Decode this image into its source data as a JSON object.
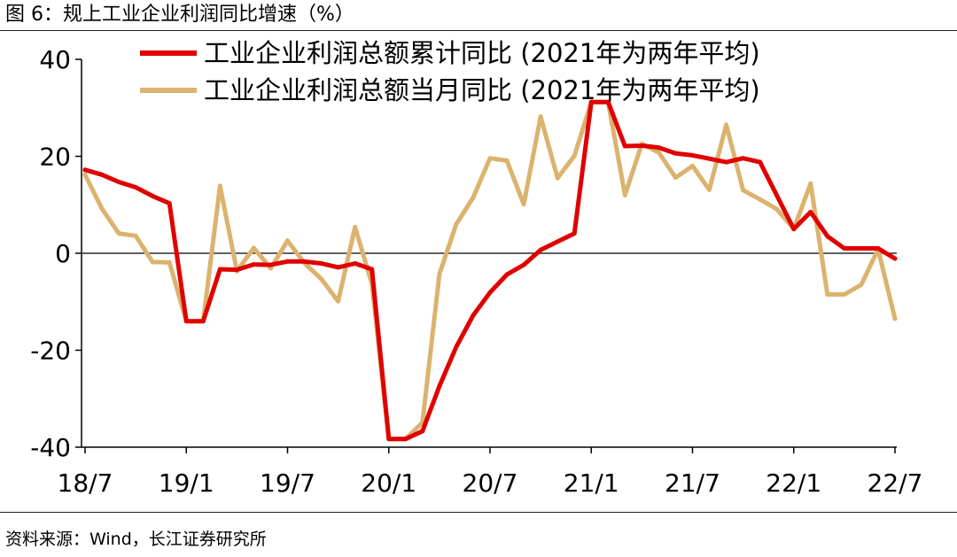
{
  "figure": {
    "caption": "图 6：规上工业企业利润同比增速（%）",
    "source": "资料来源：Wind，长江证券研究所"
  },
  "chart_data": {
    "type": "line",
    "title": "",
    "xlabel": "",
    "ylabel": "",
    "ylim": [
      -40,
      40
    ],
    "y_ticks": [
      "40",
      "20",
      "0",
      "-20",
      "-40"
    ],
    "y_tick_values": [
      40,
      20,
      0,
      -20,
      -40
    ],
    "x_ticks": [
      "18/7",
      "19/1",
      "19/7",
      "20/1",
      "20/7",
      "21/1",
      "21/7",
      "22/1",
      "22/7"
    ],
    "x_tick_index": [
      0,
      6,
      12,
      18,
      24,
      30,
      36,
      42,
      48
    ],
    "x": [
      "18/7",
      "18/8",
      "18/9",
      "18/10",
      "18/11",
      "18/12",
      "19/1",
      "19/2",
      "19/3",
      "19/4",
      "19/5",
      "19/6",
      "19/7",
      "19/8",
      "19/9",
      "19/10",
      "19/11",
      "19/12",
      "20/1",
      "20/2",
      "20/3",
      "20/4",
      "20/5",
      "20/6",
      "20/7",
      "20/8",
      "20/9",
      "20/10",
      "20/11",
      "20/12",
      "21/1",
      "21/2",
      "21/3",
      "21/4",
      "21/5",
      "21/6",
      "21/7",
      "21/8",
      "21/9",
      "21/10",
      "21/11",
      "21/12",
      "22/1",
      "22/2",
      "22/3",
      "22/4",
      "22/5",
      "22/6",
      "22/7"
    ],
    "legend_position": "top",
    "series": [
      {
        "name": "工业企业利润总额累计同比 (2021年为两年平均)",
        "color": "#e00000",
        "values": [
          17.2,
          16.2,
          14.7,
          13.6,
          11.8,
          10.3,
          -14.0,
          -14.0,
          -3.3,
          -3.4,
          -2.3,
          -2.4,
          -1.7,
          -1.7,
          -2.1,
          -2.9,
          -2.1,
          -3.3,
          -38.3,
          -38.3,
          -36.7,
          -27.4,
          -19.3,
          -12.8,
          -8.1,
          -4.4,
          -2.4,
          0.7,
          2.4,
          4.1,
          31.2,
          31.2,
          22.1,
          22.2,
          21.8,
          20.6,
          20.2,
          19.5,
          18.8,
          19.6,
          18.8,
          11.9,
          5.0,
          8.5,
          3.5,
          1.0,
          1.0,
          1.0,
          -1.1
        ]
      },
      {
        "name": "工业企业利润总额当月同比 (2021年为两年平均)",
        "color": "#dbb36e",
        "values": [
          16.2,
          9.2,
          4.1,
          3.6,
          -1.8,
          -1.9,
          -14.0,
          -14.0,
          13.9,
          -3.7,
          1.1,
          -3.1,
          2.6,
          -2.0,
          -5.3,
          -9.9,
          5.4,
          -6.3,
          -38.3,
          -38.3,
          -34.9,
          -4.3,
          6.0,
          11.5,
          19.6,
          19.1,
          10.1,
          28.2,
          15.5,
          20.1,
          31.2,
          31.2,
          12.0,
          22.6,
          20.8,
          15.6,
          18.0,
          13.1,
          26.5,
          13.0,
          11.1,
          9.1,
          5.0,
          14.4,
          -8.5,
          -8.5,
          -6.5,
          0.8,
          -13.5
        ]
      }
    ]
  }
}
